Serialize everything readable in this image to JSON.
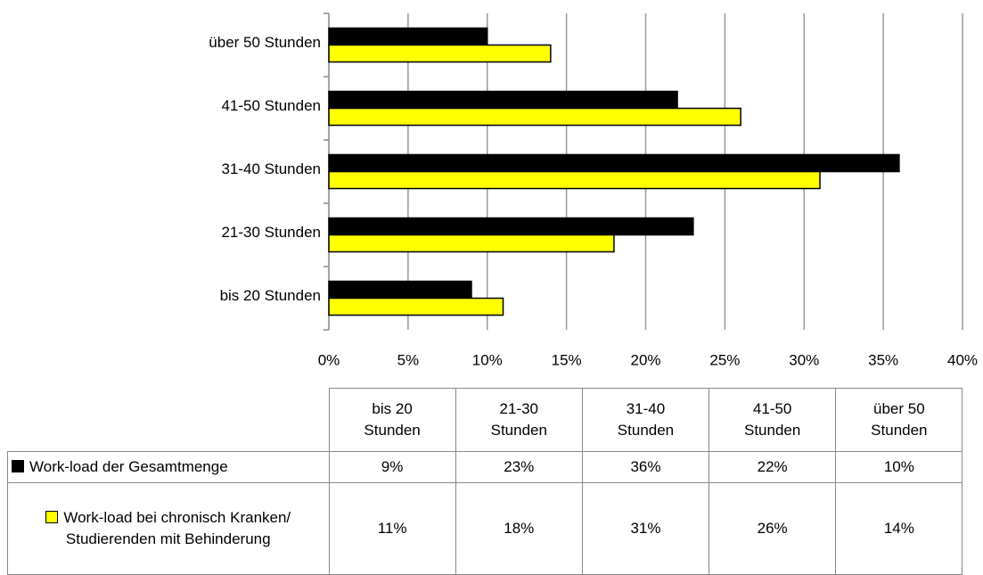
{
  "chart_data": {
    "type": "bar",
    "orientation": "horizontal",
    "categories": [
      "bis 20 Stunden",
      "21-30 Stunden",
      "31-40 Stunden",
      "41-50 Stunden",
      "über 50 Stunden"
    ],
    "series": [
      {
        "name": "Work-load der Gesamtmenge",
        "color": "#000000",
        "values": [
          9,
          23,
          36,
          22,
          10
        ],
        "value_labels": [
          "9%",
          "23%",
          "36%",
          "22%",
          "10%"
        ]
      },
      {
        "name": "Work-load bei chronisch Kranken/ Studierenden mit Behinderung",
        "color": "#ffff00",
        "values": [
          11,
          18,
          31,
          26,
          14
        ],
        "value_labels": [
          "11%",
          "18%",
          "31%",
          "26%",
          "14%"
        ]
      }
    ],
    "xlim": [
      0,
      40
    ],
    "xticks": [
      {
        "value": 0,
        "label": "0%"
      },
      {
        "value": 5,
        "label": "5%"
      },
      {
        "value": 10,
        "label": "10%"
      },
      {
        "value": 15,
        "label": "15%"
      },
      {
        "value": 20,
        "label": "20%"
      },
      {
        "value": 25,
        "label": "25%"
      },
      {
        "value": 30,
        "label": "30%"
      },
      {
        "value": 35,
        "label": "35%"
      },
      {
        "value": 40,
        "label": "40%"
      }
    ],
    "grid": true,
    "data_table": true
  }
}
